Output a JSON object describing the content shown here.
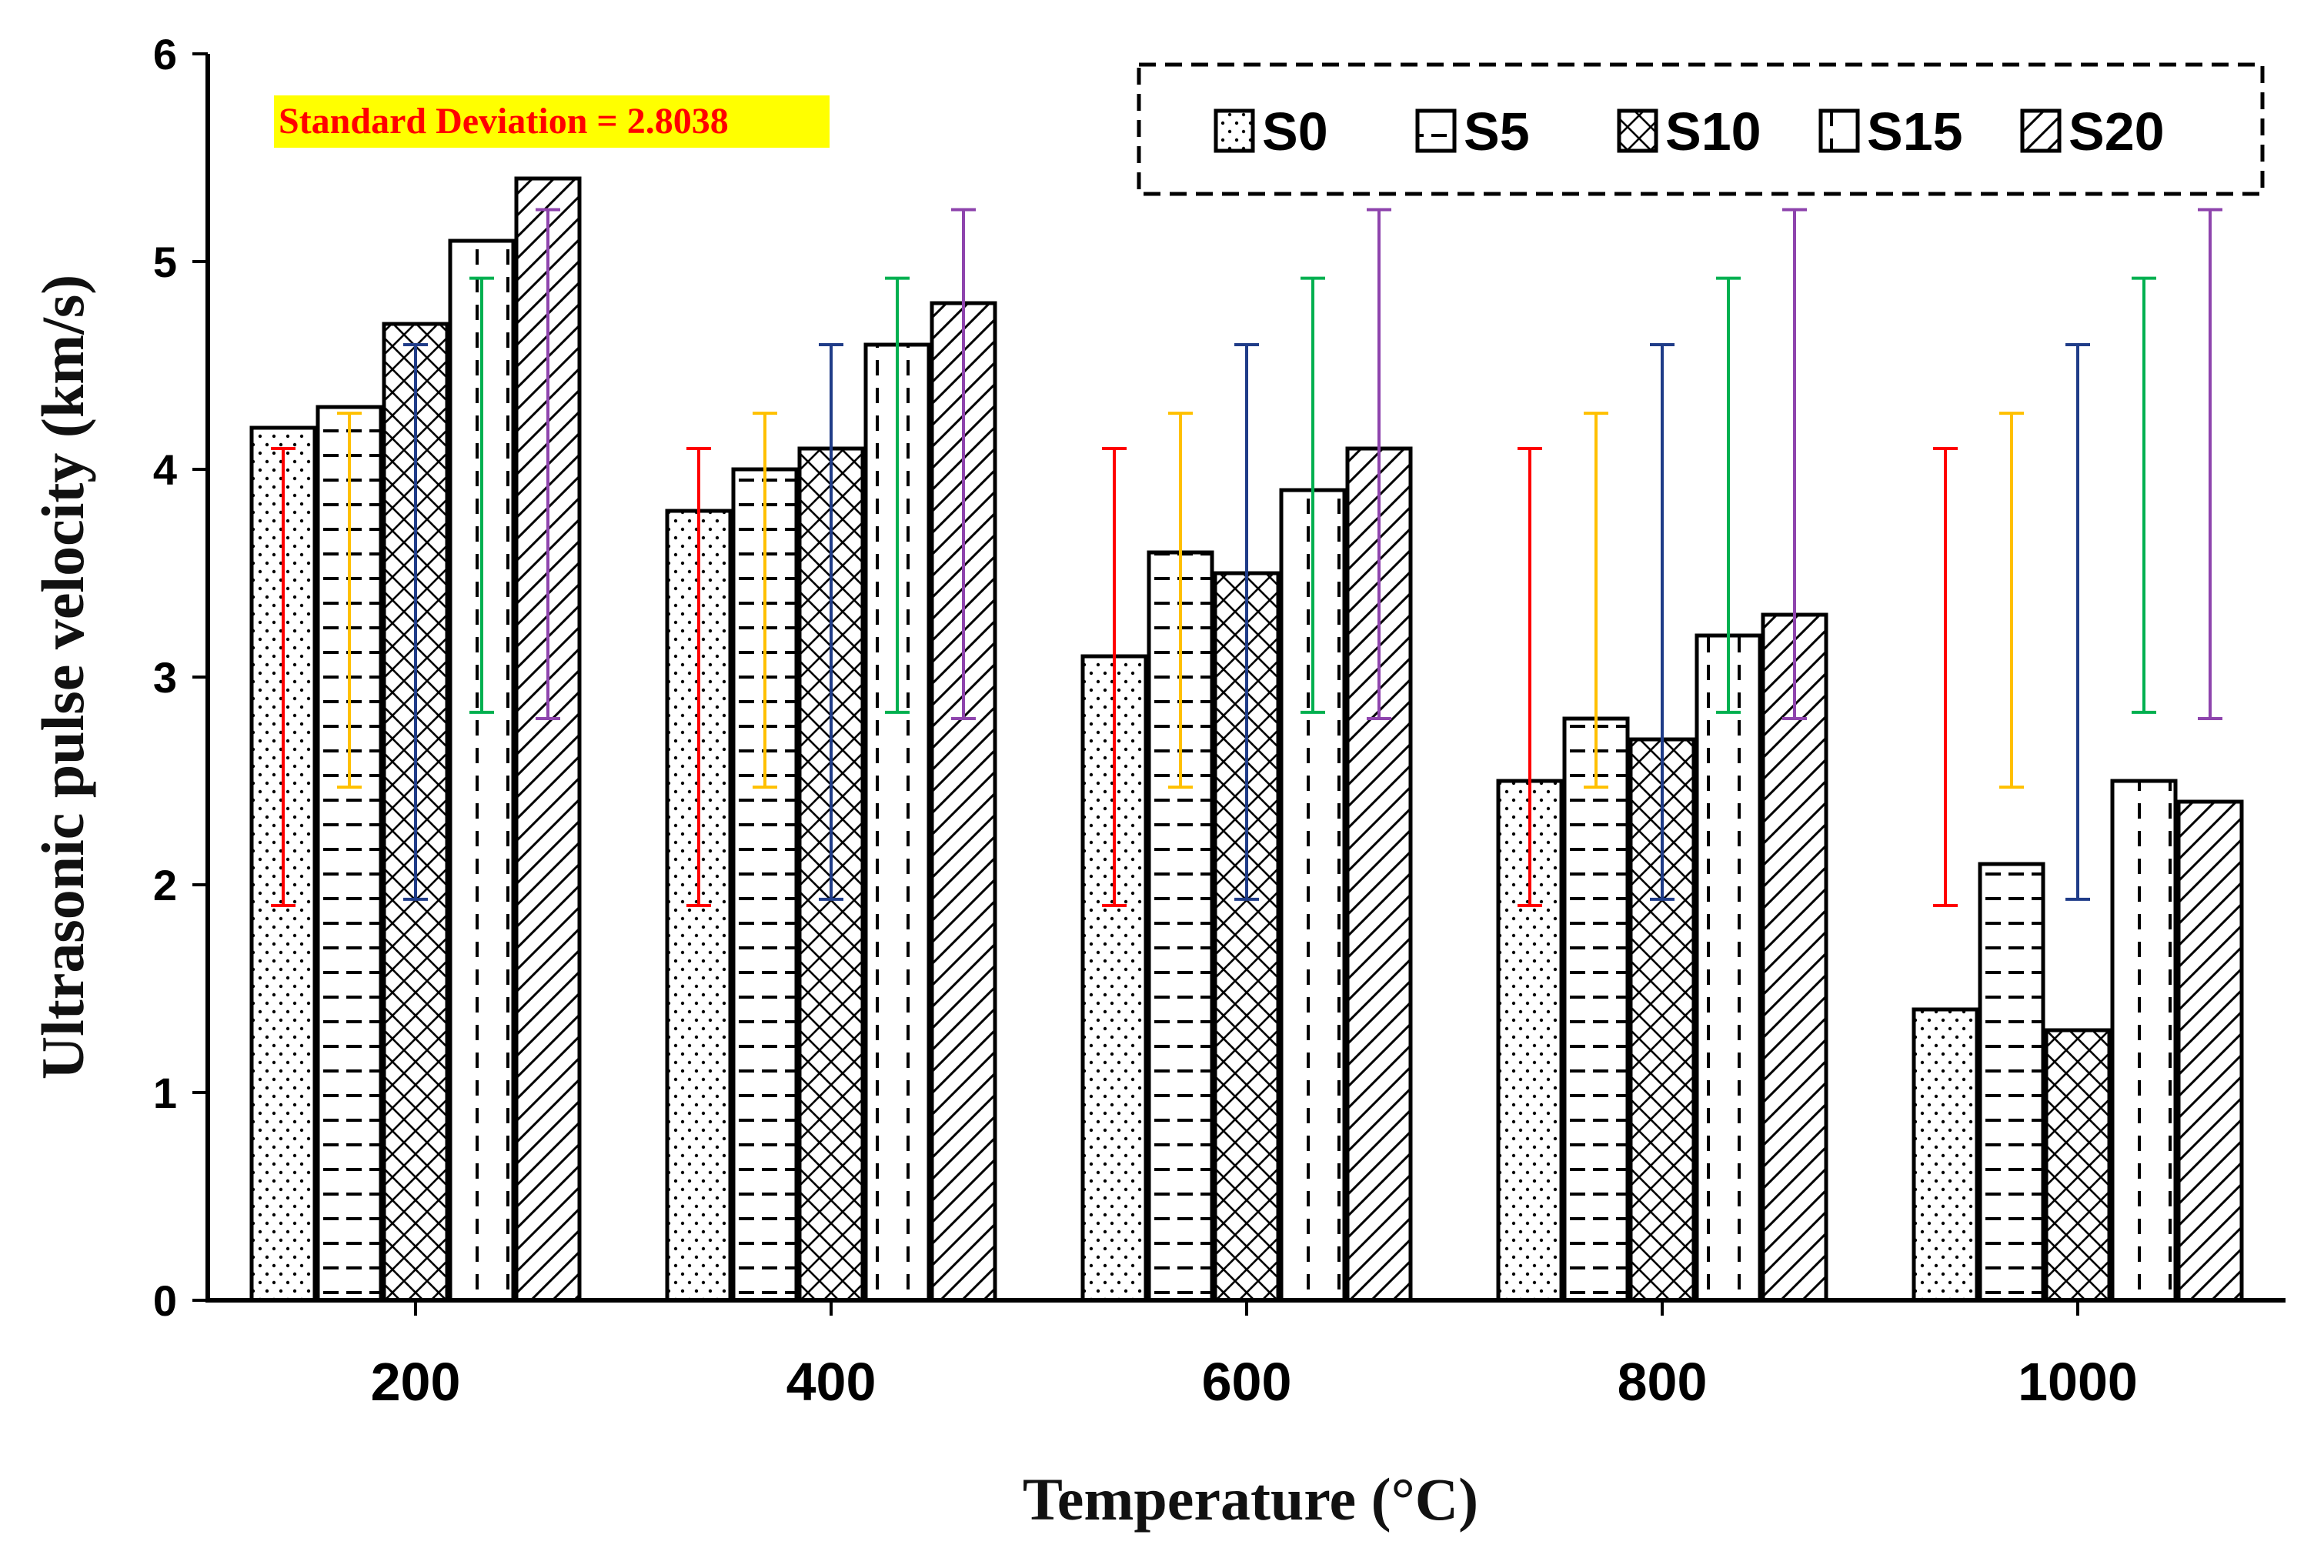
{
  "chart_data": {
    "type": "bar",
    "title": "",
    "xlabel": "Temperature (°C)",
    "ylabel": "Ultrasonic pulse velocity (km/s)",
    "ylim": [
      0,
      6
    ],
    "yticks": [
      "0",
      "1",
      "2",
      "3",
      "4",
      "5",
      "6"
    ],
    "categories": [
      "200",
      "400",
      "600",
      "800",
      "1000"
    ],
    "legend_position": "top-right",
    "annotation": "Standard Deviation = 2.8038",
    "annotation_colors": {
      "text": "#ff0000",
      "background": "#ffff00"
    },
    "series": [
      {
        "name": "S0",
        "pattern": "dots",
        "values": [
          4.2,
          3.8,
          3.1,
          2.5,
          1.4
        ],
        "error_bar": {
          "low": 1.9,
          "high": 4.1,
          "color": "#ff0000"
        }
      },
      {
        "name": "S5",
        "pattern": "horizontal",
        "values": [
          4.3,
          4.0,
          3.6,
          2.8,
          2.1
        ],
        "error_bar": {
          "low": 2.47,
          "high": 4.27,
          "color": "#ffc000"
        }
      },
      {
        "name": "S10",
        "pattern": "crosshatch",
        "values": [
          4.7,
          4.1,
          3.5,
          2.7,
          1.3
        ],
        "error_bar": {
          "low": 1.93,
          "high": 4.6,
          "color": "#1f3c88"
        }
      },
      {
        "name": "S15",
        "pattern": "vertical",
        "values": [
          5.1,
          4.6,
          3.9,
          3.2,
          2.5
        ],
        "error_bar": {
          "low": 2.83,
          "high": 4.92,
          "color": "#00b050"
        }
      },
      {
        "name": "S20",
        "pattern": "diagonal",
        "values": [
          5.4,
          4.8,
          4.1,
          3.3,
          2.4
        ],
        "error_bar": {
          "low": 2.8,
          "high": 5.25,
          "color": "#8e44ad"
        }
      }
    ]
  }
}
